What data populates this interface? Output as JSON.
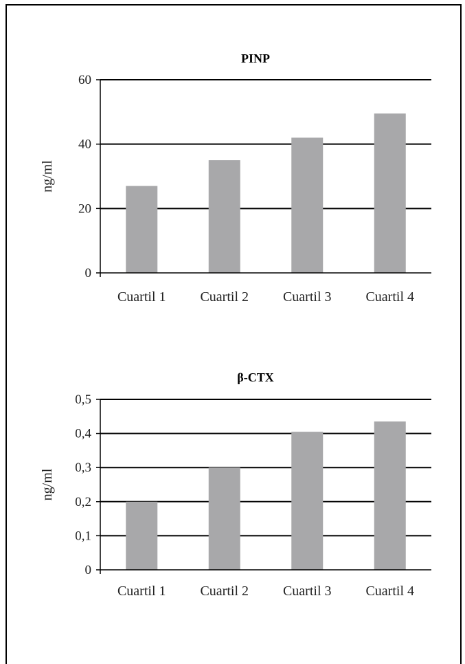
{
  "colors": {
    "bar": "#a8a8aa",
    "axis": "#000000",
    "grid": "#000000"
  },
  "chart_data": [
    {
      "type": "bar",
      "title": "PINP",
      "ylabel": "ng/ml",
      "xlabel": "",
      "categories": [
        "Cuartil 1",
        "Cuartil 2",
        "Cuartil 3",
        "Cuartil 4"
      ],
      "values": [
        27,
        35,
        42,
        49.5
      ],
      "ylim": [
        0,
        60
      ],
      "yticks": [
        0,
        20,
        40,
        60
      ],
      "ytick_labels": [
        "0",
        "20",
        "40",
        "60"
      ],
      "grid": true
    },
    {
      "type": "bar",
      "title": "β-CTX",
      "ylabel": "ng/ml",
      "xlabel": "",
      "categories": [
        "Cuartil 1",
        "Cuartil 2",
        "Cuartil 3",
        "Cuartil 4"
      ],
      "values": [
        0.2,
        0.3,
        0.405,
        0.435
      ],
      "ylim": [
        0,
        0.5
      ],
      "yticks": [
        0,
        0.1,
        0.2,
        0.3,
        0.4,
        0.5
      ],
      "ytick_labels": [
        "0",
        "0,1",
        "0,2",
        "0,3",
        "0,4",
        "0,5"
      ],
      "grid": true
    }
  ]
}
